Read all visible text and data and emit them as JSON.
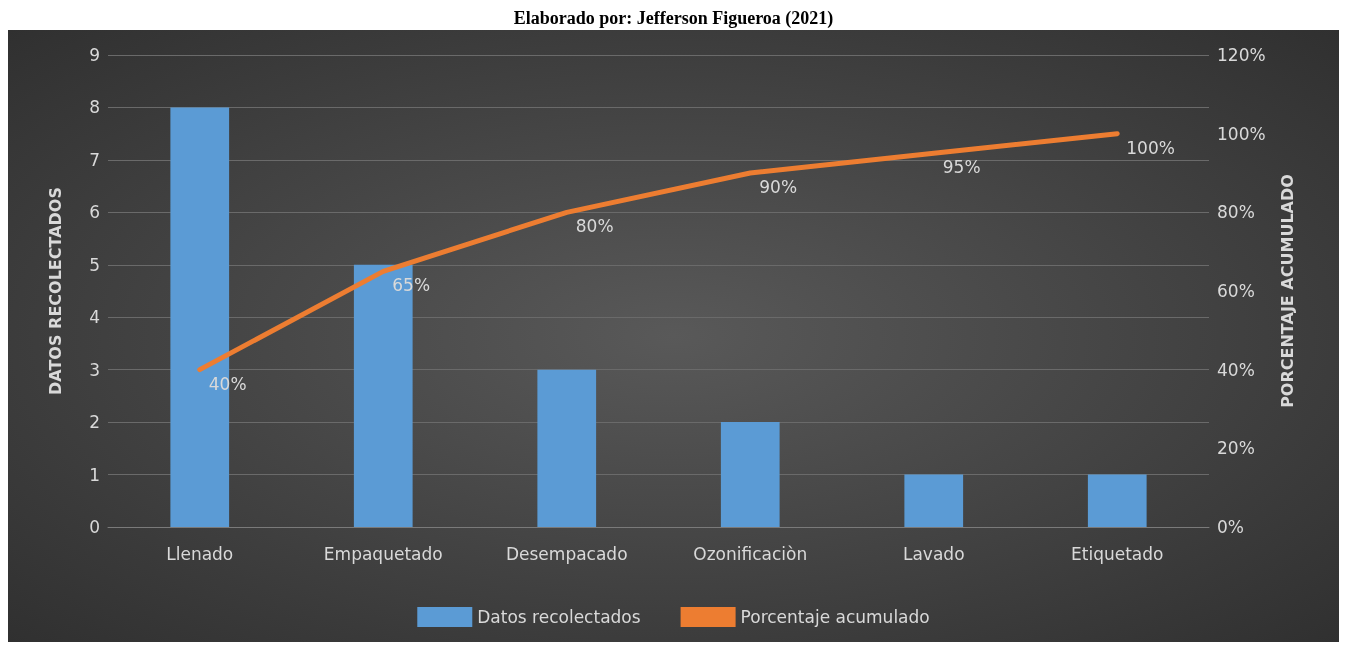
{
  "chart_data": {
    "type": "bar",
    "annotations": [
      "Elaborado por: Jefferson Figueroa (2021)"
    ],
    "ylabel": "DATOS RECOLECTADOS",
    "y2label": "PORCENTAJE ACUMULADO",
    "categories": [
      "Llenado",
      "Empaquetado",
      "Desempacado",
      "Ozonificaciòn",
      "Lavado",
      "Etiquetado"
    ],
    "series": [
      {
        "name": "Datos recolectados",
        "color": "#5b9bd5",
        "values": [
          8,
          5,
          3,
          2,
          1,
          1
        ]
      },
      {
        "name": "Porcentaje acumulado",
        "type": "line",
        "axis": "y2",
        "color": "#ed7d31",
        "values": [
          40,
          65,
          80,
          90,
          95,
          100
        ],
        "value_labels": [
          "40%",
          "65%",
          "80%",
          "90%",
          "95%",
          "100%"
        ]
      }
    ],
    "ylim": [
      0,
      9
    ],
    "yticks": [
      0,
      1,
      2,
      3,
      4,
      5,
      6,
      7,
      8,
      9
    ],
    "y2lim": [
      0,
      120
    ],
    "y2ticks": [
      {
        "value": 0,
        "label": "0%"
      },
      {
        "value": 20,
        "label": "20%"
      },
      {
        "value": 40,
        "label": "40%"
      },
      {
        "value": 60,
        "label": "60%"
      },
      {
        "value": 80,
        "label": "80%"
      },
      {
        "value": 100,
        "label": "100%"
      },
      {
        "value": 120,
        "label": "120%"
      }
    ],
    "grid": "y",
    "legend": "bottom",
    "marker": "none",
    "line_style": "solid"
  }
}
